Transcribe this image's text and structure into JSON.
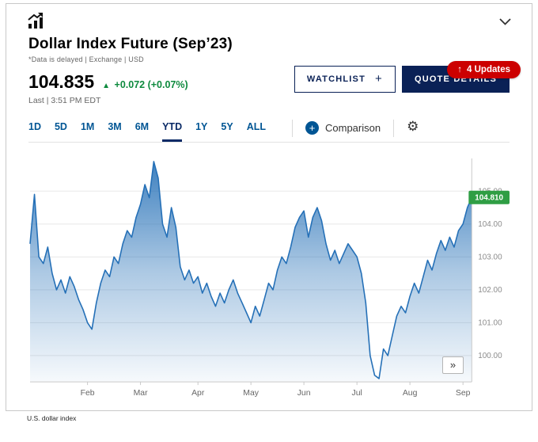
{
  "header": {
    "title": "Dollar Index Future (Sep’23)",
    "subtitle": "*Data is delayed | Exchange | USD",
    "price": "104.835",
    "change_arrow": "▲",
    "change": "+0.072 (+0.07%)",
    "change_color": "#0e8a3e",
    "last_label": "Last | 3:51 PM EDT",
    "watchlist_label": "WATCHLIST",
    "watchlist_plus": "+",
    "quote_details_label": "QUOTE DETAILS",
    "updates_badge": {
      "arrow": "↑",
      "label": "4 Updates",
      "color": "#cc0000"
    }
  },
  "toolbar": {
    "accent_color": "#005594",
    "ranges": [
      {
        "label": "1D",
        "active": false
      },
      {
        "label": "5D",
        "active": false
      },
      {
        "label": "1M",
        "active": false
      },
      {
        "label": "3M",
        "active": false
      },
      {
        "label": "6M",
        "active": false
      },
      {
        "label": "YTD",
        "active": true
      },
      {
        "label": "1Y",
        "active": false
      },
      {
        "label": "5Y",
        "active": false
      },
      {
        "label": "ALL",
        "active": false
      }
    ],
    "comparison_label": "Comparison"
  },
  "chart_data": {
    "type": "area",
    "title": "Dollar Index Future (Sep’23) — YTD",
    "xlabel": "",
    "ylabel": "",
    "ylim": [
      99.2,
      105.9
    ],
    "yticks": [
      100,
      101,
      102,
      103,
      104,
      105
    ],
    "ytick_labels": [
      "100.00",
      "101.00",
      "102.00",
      "103.00",
      "104.00",
      "105.00"
    ],
    "month_ticks": [
      {
        "label": "Feb",
        "index": 13
      },
      {
        "label": "Mar",
        "index": 25
      },
      {
        "label": "Apr",
        "index": 38
      },
      {
        "label": "May",
        "index": 50
      },
      {
        "label": "Jun",
        "index": 62
      },
      {
        "label": "Jul",
        "index": 74
      },
      {
        "label": "Aug",
        "index": 86
      },
      {
        "label": "Sep",
        "index": 98
      }
    ],
    "last_price_value": 104.81,
    "last_price_label": "104.810",
    "line_color": "#2570b7",
    "flag_color": "#2f9e44",
    "grid_color": "#e8e8e8",
    "axis_color": "#c9c9c9",
    "tick_label_color": "#8c8c8c",
    "values": [
      103.4,
      104.9,
      103.0,
      102.8,
      103.3,
      102.5,
      102.0,
      102.3,
      101.9,
      102.4,
      102.1,
      101.7,
      101.4,
      101.0,
      100.8,
      101.6,
      102.2,
      102.6,
      102.4,
      103.0,
      102.8,
      103.4,
      103.8,
      103.6,
      104.2,
      104.6,
      105.2,
      104.8,
      105.9,
      105.4,
      104.0,
      103.6,
      104.5,
      103.9,
      102.7,
      102.3,
      102.6,
      102.2,
      102.4,
      101.9,
      102.2,
      101.8,
      101.5,
      101.9,
      101.6,
      102.0,
      102.3,
      101.9,
      101.6,
      101.3,
      101.0,
      101.5,
      101.2,
      101.7,
      102.2,
      102.0,
      102.6,
      103.0,
      102.8,
      103.3,
      103.9,
      104.2,
      104.4,
      103.6,
      104.2,
      104.5,
      104.1,
      103.4,
      102.9,
      103.2,
      102.8,
      103.1,
      103.4,
      103.2,
      103.0,
      102.5,
      101.6,
      100.0,
      99.4,
      99.3,
      100.2,
      100.0,
      100.6,
      101.2,
      101.5,
      101.3,
      101.8,
      102.2,
      101.9,
      102.4,
      102.9,
      102.6,
      103.1,
      103.5,
      103.2,
      103.6,
      103.3,
      103.8,
      104.0,
      104.5,
      104.81
    ]
  },
  "chart_controls": {
    "expand_label": "»"
  },
  "footer": {
    "caption": "U.S. dollar index"
  }
}
